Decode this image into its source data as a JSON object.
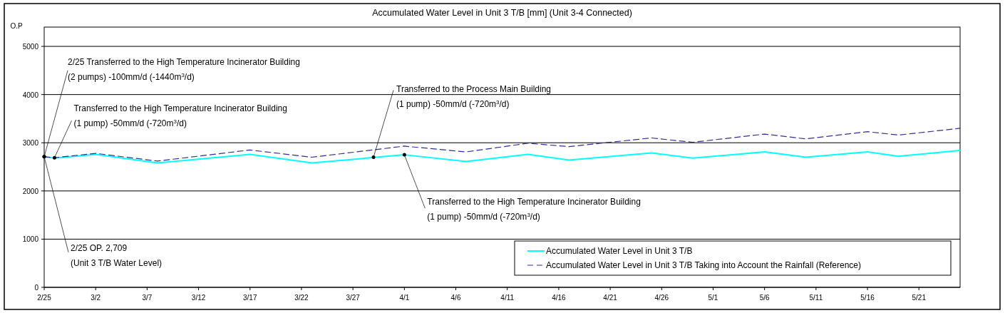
{
  "chart_data": {
    "type": "line",
    "title": "Accumulated Water Level in Unit 3 T/B [mm] (Unit 3-4 Connected)",
    "ylabel": "O.P",
    "xlim": [
      "--02-25",
      "--05-25"
    ],
    "xticks": [
      {
        "value": "--02-25",
        "label": "2/25"
      },
      {
        "value": "--03-02",
        "label": "3/2"
      },
      {
        "value": "--03-07",
        "label": "3/7"
      },
      {
        "value": "--03-12",
        "label": "3/12"
      },
      {
        "value": "--03-17",
        "label": "3/17"
      },
      {
        "value": "--03-22",
        "label": "3/22"
      },
      {
        "value": "--03-27",
        "label": "3/27"
      },
      {
        "value": "--04-01",
        "label": "4/1"
      },
      {
        "value": "--04-06",
        "label": "4/6"
      },
      {
        "value": "--04-11",
        "label": "4/11"
      },
      {
        "value": "--04-16",
        "label": "4/16"
      },
      {
        "value": "--04-21",
        "label": "4/21"
      },
      {
        "value": "--04-26",
        "label": "4/26"
      },
      {
        "value": "--05-01",
        "label": "5/1"
      },
      {
        "value": "--05-06",
        "label": "5/6"
      },
      {
        "value": "--05-11",
        "label": "5/11"
      },
      {
        "value": "--05-16",
        "label": "5/16"
      },
      {
        "value": "--05-21",
        "label": "5/21"
      }
    ],
    "ylim": [
      0,
      5400
    ],
    "yticks": [
      0,
      1000,
      2000,
      3000,
      4000,
      5000
    ],
    "grid": "y",
    "legend": "bottom right",
    "series": [
      {
        "name": "Accumulated Water Level in Unit 3 T/B",
        "color": "#00ffff",
        "line_style": "solid",
        "x": [
          "--02-25",
          "--02-26",
          "--03-02",
          "--03-08",
          "--03-17",
          "--03-23",
          "--04-01",
          "--04-07",
          "--04-13",
          "--04-17",
          "--04-25",
          "--04-29",
          "--05-06",
          "--05-10",
          "--05-16",
          "--05-19",
          "--05-25"
        ],
        "values": [
          2710,
          2680,
          2760,
          2580,
          2760,
          2580,
          2750,
          2610,
          2760,
          2640,
          2790,
          2680,
          2810,
          2700,
          2810,
          2720,
          2840
        ]
      },
      {
        "name": "Accumulated Water Level in Unit 3 T/B Taking into Account the Rainfall (Reference)",
        "color": "#2e3192",
        "line_style": "dashed",
        "x": [
          "--02-25",
          "--02-26",
          "--03-02",
          "--03-08",
          "--03-17",
          "--03-23",
          "--04-01",
          "--04-07",
          "--04-13",
          "--04-17",
          "--04-25",
          "--04-29",
          "--05-06",
          "--05-10",
          "--05-16",
          "--05-19",
          "--05-25"
        ],
        "values": [
          2710,
          2690,
          2780,
          2620,
          2850,
          2700,
          2930,
          2810,
          2990,
          2920,
          3100,
          3010,
          3180,
          3080,
          3230,
          3160,
          3300
        ]
      }
    ],
    "annotations": [
      {
        "text": "2/25 Transferred to the High Temperature Incinerator Building\n(2 pumps) -100mm/d (-1440m$^{3}$/d)",
        "x": "--02-25",
        "y": 2710
      },
      {
        "text": "Transferred to the High Temperature Incinerator Building\n(1 pump) -50mm/d (-720m$^{3}$/d)",
        "x": "--02-26",
        "y": 2690
      },
      {
        "text": "Transferred to the Process Main Building\n(1 pump) -50mm/d (-720m$^{3}$/d)",
        "x": "--03-29",
        "y": 2700
      },
      {
        "text": "Transferred to the High Temperature Incinerator Building\n(1 pump) -50mm/d (-720m$^{3}$/d)",
        "x": "--04-01",
        "y": 2750
      },
      {
        "text": "2/25 OP. 2,709\n(Unit 3 T/B Water Level)",
        "x": "--02-25",
        "y": 2710
      }
    ]
  }
}
